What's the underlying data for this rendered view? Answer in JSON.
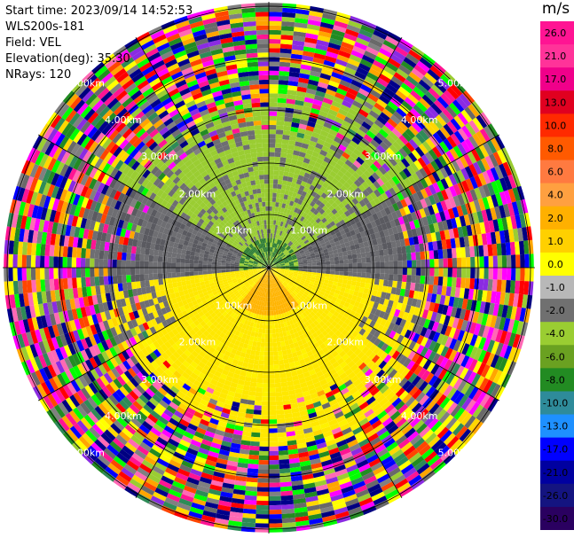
{
  "header": {
    "start_time": "Start time: 2023/09/14 14:52:53",
    "instrument": "WLS200s-181",
    "field": "Field: VEL",
    "elevation": "Elevation(deg): 35.30",
    "nrays": "NRays: 120"
  },
  "colorbar": {
    "unit": "m/s",
    "ticks": [
      "26.0",
      "21.0",
      "17.0",
      "13.0",
      "10.0",
      "8.0",
      "6.0",
      "4.0",
      "2.0",
      "1.0",
      "0.0",
      "-1.0",
      "-2.0",
      "-4.0",
      "-6.0",
      "-8.0",
      "-10.0",
      "-13.0",
      "-17.0",
      "-21.0",
      "-26.0",
      "-30.0"
    ],
    "colors": [
      "#ff1493",
      "#ff3399",
      "#f0008a",
      "#e00020",
      "#ff2a00",
      "#ff5a00",
      "#ff7a40",
      "#ffa040",
      "#ffb000",
      "#ffd000",
      "#ffff00",
      "#b8b8b8",
      "#707070",
      "#9acd32",
      "#6aa121",
      "#228b22",
      "#2e8b9a",
      "#1e90ff",
      "#0000ff",
      "#0000a0",
      "#141480",
      "#2a0060"
    ]
  },
  "rings": {
    "labels": [
      "1.00km",
      "2.00km",
      "3.00km",
      "4.00km",
      "5.00km"
    ]
  },
  "palette": {
    "noise": [
      "#ff1493",
      "#ffd700",
      "#ffff00",
      "#00ff00",
      "#0000ff",
      "#ff0000",
      "#9acd32",
      "#228b22",
      "#ff69b4",
      "#8a2be2",
      "#ff4500",
      "#00008b",
      "#2e8b57",
      "#808080",
      "#696969",
      "#ffa500",
      "#ff00ff",
      "#000080"
    ],
    "yellow": "#ffe800",
    "yellow_light": "#fff200",
    "orange": "#ffb400",
    "green": "#9acd32",
    "green_dark": "#2e7d32",
    "gray": "#6e6e72",
    "gray_dark": "#5a5a60"
  }
}
